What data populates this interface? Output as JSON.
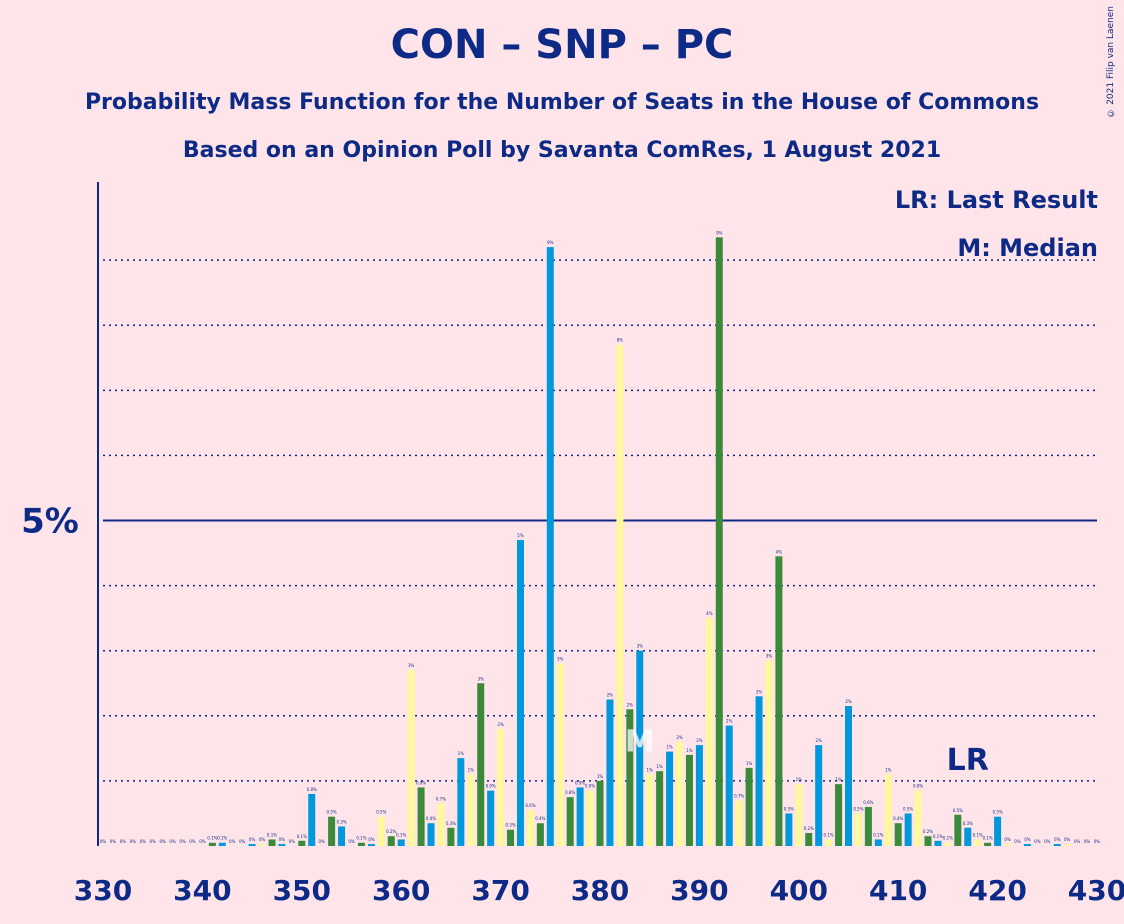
{
  "header": {
    "title": "CON – SNP – PC",
    "subtitle1": "Probability Mass Function for the Number of Seats in the House of Commons",
    "subtitle2": "Based on an Opinion Poll by Savanta ComRes, 1 August 2021",
    "copyright": "© 2021 Filip van Laenen"
  },
  "legend": {
    "last_result": "LR: Last Result",
    "median": "M: Median"
  },
  "colors": {
    "background": "#ffe4e9",
    "text": "#0d2a86",
    "blue": "#0098dc",
    "yellow": "#fff89c",
    "green": "#3a8a3a"
  },
  "chart_data": {
    "type": "bar",
    "title": "CON – SNP – PC",
    "xlabel": "",
    "ylabel": "",
    "x_ticks": [
      330,
      340,
      350,
      360,
      370,
      380,
      390,
      400,
      410,
      420,
      430
    ],
    "y_tick_labels": [
      {
        "value": 5,
        "label": "5%"
      }
    ],
    "xlim": [
      330,
      430
    ],
    "ylim": [
      0,
      10.2
    ],
    "median_seat": 384,
    "median_label": "M",
    "last_result_seat": 417,
    "last_result_label": "LR",
    "series": [
      {
        "values": [
          [
            330,
            0
          ],
          [
            331,
            0
          ],
          [
            332,
            0
          ],
          [
            333,
            0
          ],
          [
            334,
            0
          ],
          [
            335,
            0
          ],
          [
            336,
            0
          ],
          [
            337,
            0
          ],
          [
            338,
            0
          ],
          [
            339,
            0
          ],
          [
            340,
            0
          ],
          [
            341,
            0.05
          ],
          [
            342,
            0.05
          ],
          [
            343,
            0
          ],
          [
            344,
            0
          ],
          [
            345,
            0.03
          ],
          [
            346,
            0.03
          ],
          [
            347,
            0.1
          ],
          [
            348,
            0.03
          ],
          [
            349,
            0
          ],
          [
            350,
            0.08
          ],
          [
            351,
            0.8
          ],
          [
            352,
            0
          ],
          [
            353,
            0.45
          ],
          [
            354,
            0.3
          ],
          [
            355,
            0
          ],
          [
            356,
            0.05
          ],
          [
            357,
            0.03
          ],
          [
            358,
            0.45
          ],
          [
            359,
            0.15
          ],
          [
            360,
            0.1
          ],
          [
            361,
            2.7
          ],
          [
            362,
            0.9
          ],
          [
            363,
            0.35
          ],
          [
            364,
            0.65
          ],
          [
            365,
            0.28
          ],
          [
            366,
            1.35
          ],
          [
            367,
            1.1
          ],
          [
            368,
            2.5
          ],
          [
            369,
            0.85
          ],
          [
            370,
            1.8
          ],
          [
            371,
            0.25
          ],
          [
            372,
            4.7
          ],
          [
            373,
            0.55
          ],
          [
            374,
            0.35
          ],
          [
            375,
            9.2
          ],
          [
            376,
            2.8
          ],
          [
            377,
            0.75
          ],
          [
            378,
            0.9
          ],
          [
            379,
            0.85
          ],
          [
            380,
            1.0
          ],
          [
            381,
            2.25
          ],
          [
            382,
            7.7
          ],
          [
            383,
            2.1
          ],
          [
            384,
            3.0
          ],
          [
            385,
            1.1
          ],
          [
            386,
            1.15
          ],
          [
            387,
            1.45
          ],
          [
            388,
            1.6
          ],
          [
            389,
            1.4
          ],
          [
            390,
            1.55
          ],
          [
            391,
            3.5
          ],
          [
            392,
            9.35
          ],
          [
            393,
            1.85
          ],
          [
            394,
            0.7
          ],
          [
            395,
            1.2
          ],
          [
            396,
            2.3
          ],
          [
            397,
            2.85
          ],
          [
            398,
            4.45
          ],
          [
            399,
            0.5
          ],
          [
            400,
            0.95
          ],
          [
            401,
            0.2
          ],
          [
            402,
            1.55
          ],
          [
            403,
            0.1
          ],
          [
            404,
            0.95
          ],
          [
            405,
            2.15
          ],
          [
            406,
            0.5
          ],
          [
            407,
            0.6
          ],
          [
            408,
            0.1
          ],
          [
            409,
            1.1
          ],
          [
            410,
            0.35
          ],
          [
            411,
            0.5
          ],
          [
            412,
            0.85
          ],
          [
            413,
            0.15
          ],
          [
            414,
            0.08
          ],
          [
            415,
            0.05
          ],
          [
            416,
            0.48
          ],
          [
            417,
            0.28
          ],
          [
            418,
            0.1
          ],
          [
            419,
            0.05
          ],
          [
            420,
            0.45
          ],
          [
            421,
            0.03
          ],
          [
            422,
            0
          ],
          [
            423,
            0.03
          ],
          [
            424,
            0
          ],
          [
            425,
            0
          ],
          [
            426,
            0.03
          ],
          [
            427,
            0.03
          ],
          [
            428,
            0
          ],
          [
            429,
            0
          ],
          [
            430,
            0
          ]
        ]
      }
    ]
  }
}
